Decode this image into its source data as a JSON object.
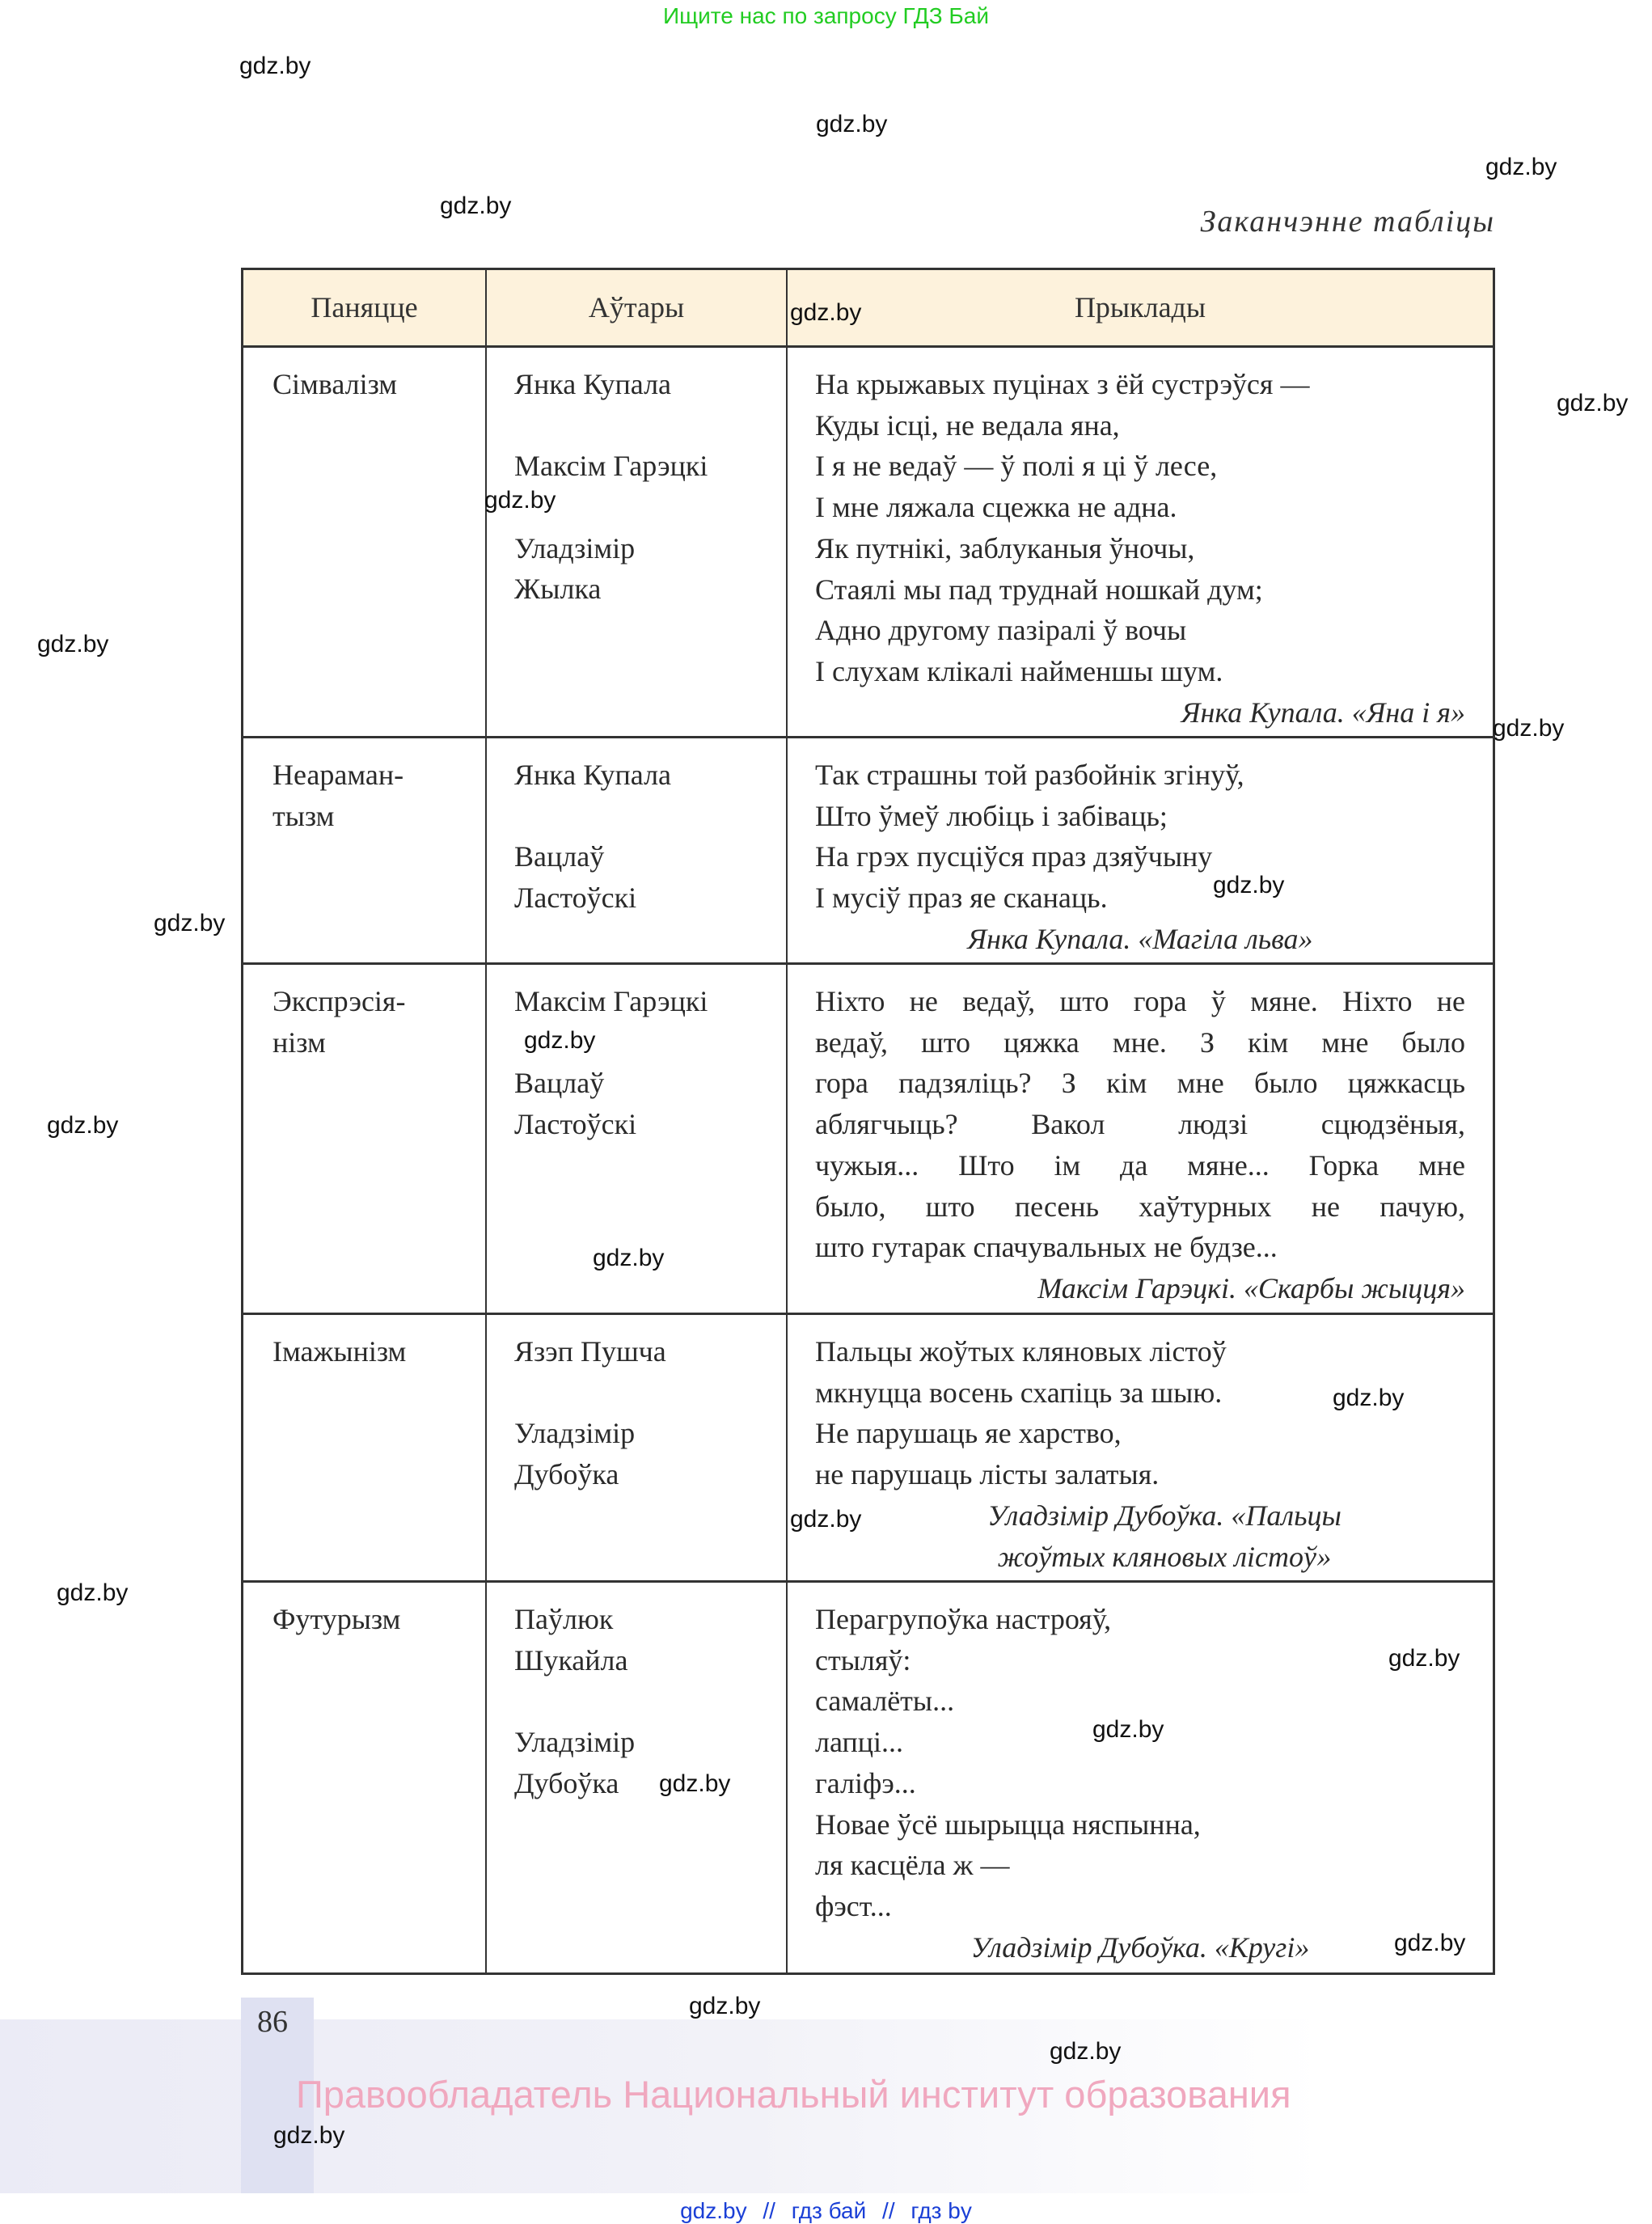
{
  "banner": "Ищите нас по запросу ГДЗ Бай",
  "caption": "Заканчэнне табліцы",
  "headers": [
    "Паняцце",
    "Аўтары",
    "Прыклады"
  ],
  "rows": [
    {
      "concept": [
        "Сімвалізм"
      ],
      "authors": [
        [
          "Янка Купала"
        ],
        [
          "Максім Гарэцкі"
        ],
        [
          "Уладзімір",
          "Жылка"
        ]
      ],
      "justified": false,
      "lines": [
        "На крыжавых пуцінах з ёй сустрэўся —",
        "Куды ісці, не ведала яна,",
        "І я не ведаў — ў полі я ці ў лесе,",
        "І мне ляжала сцежка не адна.",
        "Як путнікі, заблуканыя ўночы,",
        "Стаялі мы пад труднай ношкай дум;",
        "Адно другому пазіралі ў вочы",
        "І слухам клікалі найменшы шум."
      ],
      "attribution": [
        "Янка Купала. «Яна і я»"
      ]
    },
    {
      "concept": [
        "Неараман-",
        "тызм"
      ],
      "authors": [
        [
          "Янка Купала"
        ],
        [
          "Вацлаў",
          "Ластоўскі"
        ]
      ],
      "justified": false,
      "lines": [
        "Так страшны той разбойнік згінуў,",
        "Што ўмеў любіць і забіваць;",
        "На грэх пусціўся праз дзяўчыну",
        "І мусіў праз яе сканаць."
      ],
      "attribution": [
        "Янка Купала. «Магіла льва»"
      ]
    },
    {
      "concept": [
        "Экспрэсія-",
        "нізм"
      ],
      "authors": [
        [
          "Максім Гарэцкі"
        ],
        [
          "Вацлаў",
          "Ластоўскі"
        ]
      ],
      "justified": true,
      "lines": [
        "Ніхто не ведаў, што гора ў мяне. Ніхто не",
        "ведаў, што цяжка мне. З кім мне было",
        "гора падзяліць? З кім мне было цяжкасць",
        "аблягчыць? Вакол людзі сцюдзёныя,",
        "чужыя... Што ім да мяне... Горка мне",
        "было, што песень хаўтурных не пачую,",
        "што гутарак спачувальных не будзе..."
      ],
      "attribution": [
        "Максім Гарэцкі. «Скарбы жыцця»"
      ]
    },
    {
      "concept": [
        "Імажынізм"
      ],
      "authors": [
        [
          "Язэп Пушча"
        ],
        [
          "Уладзімір",
          "Дубоўка"
        ]
      ],
      "justified": false,
      "lines": [
        "Пальцы жоўтых кляновых лістоў",
        "мкнуцца восень схапіць за шыю.",
        "Не парушаць яе харство,",
        "не парушаць лісты залатыя."
      ],
      "attribution": [
        "Уладзімір Дубоўка. «Пальцы",
        "жоўтых кляновых лістоў»"
      ]
    },
    {
      "concept": [
        "Футурызм"
      ],
      "authors": [
        [
          "Паўлюк",
          "Шукайла"
        ],
        [
          "Уладзімір",
          "Дубоўка"
        ]
      ],
      "justified": false,
      "lines": [
        "Перагрупоўка настрояў,",
        "стыляў:",
        "самалёты...",
        "лапці...",
        "галіфэ...",
        "Новае ўсё шырыцца няспынна,",
        "ля касцёла ж —",
        "фэст..."
      ],
      "attribution": [
        "Уладзімір Дубоўка. «Кругі»"
      ]
    }
  ],
  "page_number": "86",
  "copyright": "Правообладатель Национальный институт образования",
  "watermark_text": "gdz.by",
  "bottom_links": [
    "gdz.by",
    "//",
    "гдз бай",
    "//",
    "гдз by"
  ]
}
